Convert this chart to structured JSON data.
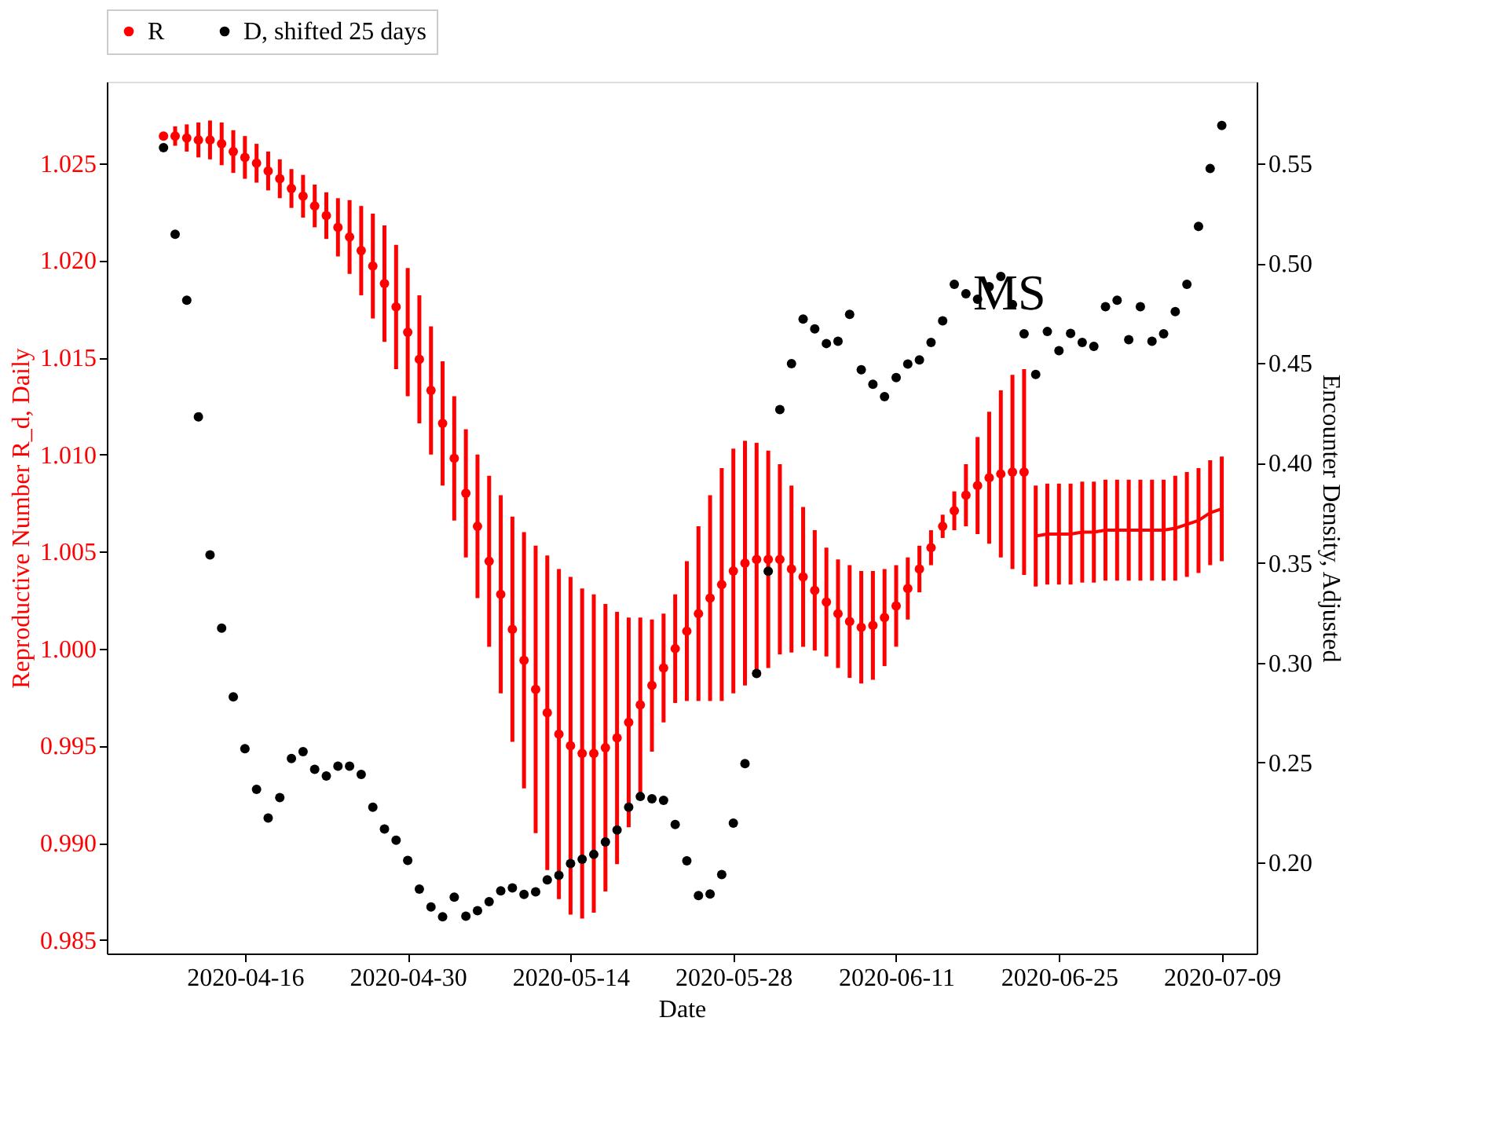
{
  "chart_data": {
    "type": "scatter",
    "xlabel": "Date",
    "ylabel": "Reproductive Number R_d, Daily",
    "y2label": "Encounter Density, Adjusted",
    "annotations": [
      "MS"
    ],
    "x": [
      "2020-04-09",
      "2020-04-10",
      "2020-04-11",
      "2020-04-12",
      "2020-04-13",
      "2020-04-14",
      "2020-04-15",
      "2020-04-16",
      "2020-04-17",
      "2020-04-18",
      "2020-04-19",
      "2020-04-20",
      "2020-04-21",
      "2020-04-22",
      "2020-04-23",
      "2020-04-24",
      "2020-04-25",
      "2020-04-26",
      "2020-04-27",
      "2020-04-28",
      "2020-04-29",
      "2020-04-30",
      "2020-05-01",
      "2020-05-02",
      "2020-05-03",
      "2020-05-04",
      "2020-05-05",
      "2020-05-06",
      "2020-05-07",
      "2020-05-08",
      "2020-05-09",
      "2020-05-10",
      "2020-05-11",
      "2020-05-12",
      "2020-05-13",
      "2020-05-14",
      "2020-05-15",
      "2020-05-16",
      "2020-05-17",
      "2020-05-18",
      "2020-05-19",
      "2020-05-20",
      "2020-05-21",
      "2020-05-22",
      "2020-05-23",
      "2020-05-24",
      "2020-05-25",
      "2020-05-26",
      "2020-05-27",
      "2020-05-28",
      "2020-05-29",
      "2020-05-30",
      "2020-05-31",
      "2020-06-01",
      "2020-06-02",
      "2020-06-03",
      "2020-06-04",
      "2020-06-05",
      "2020-06-06",
      "2020-06-07",
      "2020-06-08",
      "2020-06-09",
      "2020-06-10",
      "2020-06-11",
      "2020-06-12",
      "2020-06-13",
      "2020-06-14",
      "2020-06-15",
      "2020-06-16",
      "2020-06-17",
      "2020-06-18",
      "2020-06-19",
      "2020-06-20",
      "2020-06-21",
      "2020-06-22",
      "2020-06-23",
      "2020-06-24",
      "2020-06-25",
      "2020-06-26",
      "2020-06-27",
      "2020-06-28",
      "2020-06-29",
      "2020-06-30",
      "2020-07-01",
      "2020-07-02",
      "2020-07-03",
      "2020-07-04",
      "2020-07-05",
      "2020-07-06",
      "2020-07-07",
      "2020-07-08",
      "2020-07-09"
    ],
    "series": [
      {
        "name": "R",
        "marker": "circle",
        "color": "#ff0000",
        "x": [
          "2020-04-09",
          "2020-04-10",
          "2020-04-11",
          "2020-04-12",
          "2020-04-13",
          "2020-04-14",
          "2020-04-15",
          "2020-04-16",
          "2020-04-17",
          "2020-04-18",
          "2020-04-19",
          "2020-04-20",
          "2020-04-21",
          "2020-04-22",
          "2020-04-23",
          "2020-04-24",
          "2020-04-25",
          "2020-04-26",
          "2020-04-27",
          "2020-04-28",
          "2020-04-29",
          "2020-04-30",
          "2020-05-01",
          "2020-05-02",
          "2020-05-03",
          "2020-05-04",
          "2020-05-05",
          "2020-05-06",
          "2020-05-07",
          "2020-05-08",
          "2020-05-09",
          "2020-05-10",
          "2020-05-11",
          "2020-05-12",
          "2020-05-13",
          "2020-05-14",
          "2020-05-15",
          "2020-05-16",
          "2020-05-17",
          "2020-05-18",
          "2020-05-19",
          "2020-05-20",
          "2020-05-21",
          "2020-05-22",
          "2020-05-23",
          "2020-05-24",
          "2020-05-25",
          "2020-05-26",
          "2020-05-27",
          "2020-05-28",
          "2020-05-29",
          "2020-05-30",
          "2020-05-31",
          "2020-06-01",
          "2020-06-02",
          "2020-06-03",
          "2020-06-04",
          "2020-06-05",
          "2020-06-06",
          "2020-06-07",
          "2020-06-08",
          "2020-06-09",
          "2020-06-10",
          "2020-06-11",
          "2020-06-12",
          "2020-06-13",
          "2020-06-14",
          "2020-06-15",
          "2020-06-16",
          "2020-06-17",
          "2020-06-18",
          "2020-06-19",
          "2020-06-20",
          "2020-06-21",
          "2020-06-22"
        ],
        "values": [
          1.0264,
          1.0264,
          1.0263,
          1.0262,
          1.0262,
          1.026,
          1.0256,
          1.0253,
          1.025,
          1.0246,
          1.0242,
          1.0237,
          1.0233,
          1.0228,
          1.0223,
          1.0217,
          1.0212,
          1.0205,
          1.0197,
          1.0188,
          1.0176,
          1.0163,
          1.0149,
          1.0133,
          1.0116,
          1.0098,
          1.008,
          1.0063,
          1.0045,
          1.0028,
          1.001,
          0.9994,
          0.9979,
          0.9967,
          0.9956,
          0.995,
          0.9946,
          0.9946,
          0.9949,
          0.9954,
          0.9962,
          0.9971,
          0.9981,
          0.999,
          1.0,
          1.0009,
          1.0018,
          1.0026,
          1.0033,
          1.004,
          1.0044,
          1.0046,
          1.0046,
          1.0046,
          1.0041,
          1.0037,
          1.003,
          1.0024,
          1.0018,
          1.0014,
          1.0011,
          1.0012,
          1.0016,
          1.0022,
          1.0031,
          1.0041,
          1.0052,
          1.0063,
          1.0071,
          1.0079,
          1.0084,
          1.0088,
          1.009,
          1.0091,
          1.0091
        ],
        "errors": [
          0.0002,
          0.0005,
          0.0007,
          0.0009,
          0.001,
          0.0011,
          0.0011,
          0.0011,
          0.001,
          0.001,
          0.001,
          0.001,
          0.0011,
          0.0011,
          0.0012,
          0.0015,
          0.0019,
          0.0023,
          0.0027,
          0.003,
          0.0032,
          0.0033,
          0.0033,
          0.0033,
          0.0032,
          0.0032,
          0.0033,
          0.0037,
          0.0044,
          0.0051,
          0.0058,
          0.0066,
          0.0074,
          0.0081,
          0.0085,
          0.0087,
          0.0085,
          0.0082,
          0.0074,
          0.0065,
          0.0054,
          0.0045,
          0.0034,
          0.0028,
          0.0028,
          0.0036,
          0.0045,
          0.0053,
          0.006,
          0.0063,
          0.0063,
          0.006,
          0.0056,
          0.0049,
          0.0043,
          0.0036,
          0.0031,
          0.0028,
          0.0028,
          0.0029,
          0.0029,
          0.0028,
          0.0025,
          0.0021,
          0.0016,
          0.0012,
          0.0009,
          0.0006,
          0.001,
          0.0016,
          0.0025,
          0.0034,
          0.0043,
          0.005,
          0.0053
        ]
      },
      {
        "type": "line",
        "marker": "none",
        "color": "#ff0000",
        "x": [
          "2020-06-23",
          "2020-06-24",
          "2020-06-25",
          "2020-06-26",
          "2020-06-27",
          "2020-06-28",
          "2020-06-29",
          "2020-06-30",
          "2020-07-01",
          "2020-07-02",
          "2020-07-03",
          "2020-07-04",
          "2020-07-05",
          "2020-07-06",
          "2020-07-07",
          "2020-07-08",
          "2020-07-09"
        ],
        "values": [
          1.0058,
          1.0059,
          1.0059,
          1.0059,
          1.006,
          1.006,
          1.0061,
          1.0061,
          1.0061,
          1.0061,
          1.0061,
          1.0061,
          1.0062,
          1.0064,
          1.0066,
          1.007,
          1.0072
        ],
        "errors": [
          0.0026,
          0.0026,
          0.0026,
          0.0026,
          0.0026,
          0.0026,
          0.0026,
          0.0026,
          0.0026,
          0.0026,
          0.0026,
          0.0026,
          0.0027,
          0.0027,
          0.0027,
          0.0027,
          0.0027
        ]
      },
      {
        "name": "D, shifted 25 days",
        "marker": "circle",
        "color": "#000000",
        "axis": "y2",
        "values": [
          0.5579,
          0.5145,
          0.4815,
          0.4231,
          0.354,
          0.3173,
          0.2829,
          0.2569,
          0.2366,
          0.2222,
          0.2325,
          0.252,
          0.2555,
          0.2466,
          0.2433,
          0.2482,
          0.2482,
          0.2441,
          0.2276,
          0.2167,
          0.2111,
          0.201,
          0.1866,
          0.1777,
          0.1728,
          0.1826,
          0.1731,
          0.1758,
          0.1804,
          0.1858,
          0.1872,
          0.184,
          0.1853,
          0.1913,
          0.1935,
          0.1994,
          0.2016,
          0.204,
          0.2102,
          0.2162,
          0.2276,
          0.233,
          0.2319,
          0.2311,
          0.219,
          0.2008,
          0.1834,
          0.1842,
          0.1939,
          0.2197,
          0.2495,
          0.2946,
          0.3458,
          0.4267,
          0.4497,
          0.472,
          0.4671,
          0.4598,
          0.4609,
          0.4744,
          0.4467,
          0.4394,
          0.4332,
          0.4427,
          0.4495,
          0.4516,
          0.4603,
          0.4712,
          0.4894,
          0.4847,
          0.482,
          0.4883,
          0.4934,
          0.4793,
          0.4647,
          0.4443,
          0.4658,
          0.4562,
          0.4649,
          0.4603,
          0.4584,
          0.4782,
          0.4815,
          0.4617,
          0.4782,
          0.4609,
          0.4647,
          0.4758,
          0.4894,
          0.5184,
          0.5474,
          0.569
        ]
      }
    ],
    "xlim": [
      "2020-04-04T03:00",
      "2020-07-12"
    ],
    "xticks": [
      "2020-04-16",
      "2020-04-30",
      "2020-05-14",
      "2020-05-28",
      "2020-06-11",
      "2020-06-25",
      "2020-07-09"
    ],
    "ylim": [
      0.9843,
      1.0292
    ],
    "yticks": [
      0.985,
      {
        "value": 0.99,
        "label": "0.990"
      },
      0.995,
      {
        "value": 1.0,
        "label": "1.000"
      },
      1.005,
      {
        "value": 1.01,
        "label": "1.010"
      },
      1.015,
      {
        "value": 1.02,
        "label": "1.020"
      },
      1.025
    ],
    "y2lim": [
      0.1544,
      0.5909
    ],
    "y2ticks": [
      {
        "value": 0.2,
        "label": "0.20"
      },
      0.25,
      {
        "value": 0.3,
        "label": "0.30"
      },
      0.35,
      {
        "value": 0.4,
        "label": "0.40"
      },
      0.45,
      {
        "value": 0.5,
        "label": "0.50"
      },
      0.55
    ],
    "grid": false,
    "legend": "top"
  }
}
